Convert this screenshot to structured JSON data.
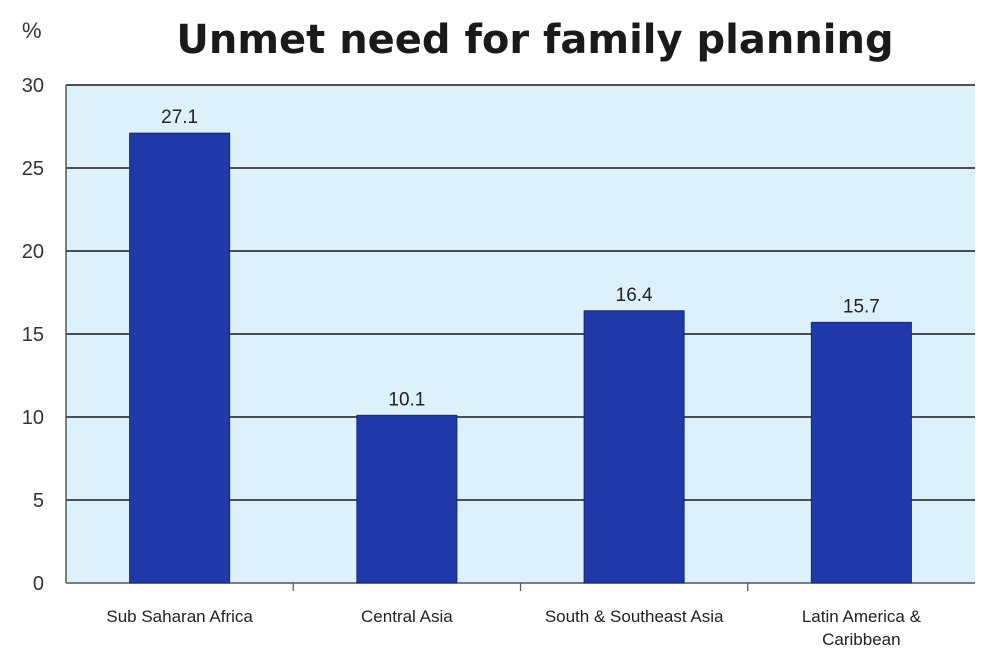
{
  "chart_data": {
    "type": "bar",
    "title": "Unmet need for family planning",
    "ylabel": "%",
    "xlabel": "",
    "ylim": [
      0,
      30
    ],
    "yticks": [
      0,
      5,
      10,
      15,
      20,
      25,
      30
    ],
    "grid": true,
    "categories": [
      [
        "Sub Saharan Africa"
      ],
      [
        "Central Asia"
      ],
      [
        "South & Southeast Asia"
      ],
      [
        "Latin America &",
        "Caribbean"
      ]
    ],
    "values": [
      27.1,
      10.1,
      16.4,
      15.7
    ],
    "value_labels": [
      "27.1",
      "10.1",
      "16.4",
      "15.7"
    ]
  },
  "colors": {
    "bar": "#1f3aa8",
    "bar_edge": "#14267a",
    "plot_bg": "#dcf1fa",
    "grid": "#1a1a1a",
    "axis": "#555555"
  }
}
